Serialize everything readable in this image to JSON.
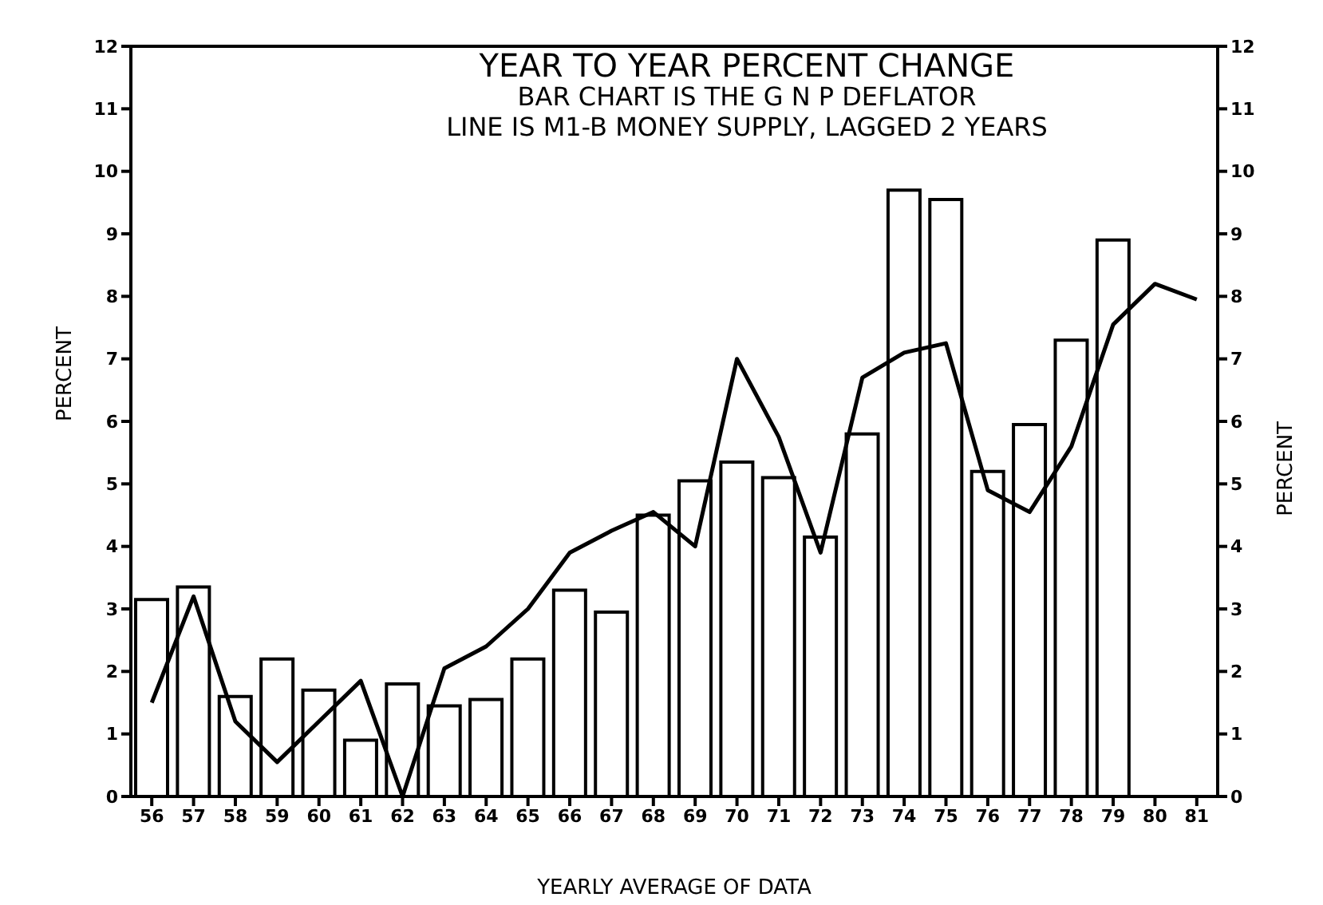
{
  "chart_data": {
    "type": "bar",
    "title": "YEAR TO YEAR PERCENT CHANGE",
    "subtitle": "BAR CHART IS THE G N P DEFLATOR\nLINE IS M1-B MONEY SUPPLY, LAGGED 2 YEARS",
    "xlabel": "YEARLY AVERAGE OF DATA",
    "ylabel": "PERCENT",
    "y2label": "PERCENT",
    "categories": [
      "56",
      "57",
      "58",
      "59",
      "60",
      "61",
      "62",
      "63",
      "64",
      "65",
      "66",
      "67",
      "68",
      "69",
      "70",
      "71",
      "72",
      "73",
      "74",
      "75",
      "76",
      "77",
      "78",
      "79",
      "80",
      "81"
    ],
    "series": [
      {
        "color": "#ffffff",
        "values": [
          3.15,
          3.35,
          1.6,
          2.2,
          1.7,
          0.9,
          1.8,
          1.45,
          1.55,
          2.2,
          3.3,
          2.95,
          4.5,
          5.05,
          5.35,
          5.1,
          4.15,
          5.8,
          9.7,
          9.55,
          5.2,
          5.95,
          7.3,
          8.9,
          null,
          null
        ]
      },
      {
        "type": "line",
        "color": "#000000",
        "values": [
          1.5,
          3.2,
          1.2,
          0.55,
          1.2,
          1.85,
          0.0,
          2.05,
          2.4,
          3.0,
          3.9,
          4.25,
          4.55,
          4.0,
          7.0,
          5.75,
          3.9,
          6.7,
          7.1,
          7.25,
          4.9,
          4.55,
          5.6,
          7.55,
          8.2,
          7.95
        ]
      }
    ],
    "ylim": [
      0,
      12
    ],
    "yticks": [
      0,
      1,
      2,
      3,
      4,
      5,
      6,
      7,
      8,
      9,
      10,
      11,
      12
    ],
    "y2lim": [
      0,
      12
    ],
    "y2ticks": [
      0,
      1,
      2,
      3,
      4,
      5,
      6,
      7,
      8,
      9,
      10,
      11,
      12
    ],
    "grid": false,
    "legend": false
  }
}
